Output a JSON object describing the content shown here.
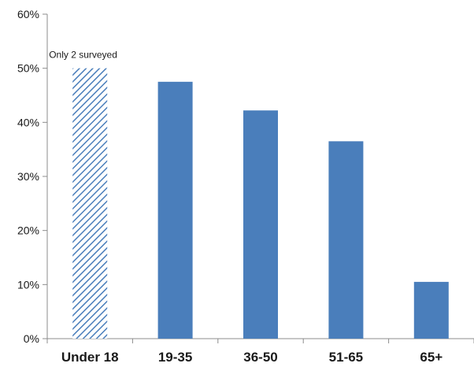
{
  "chart_data": {
    "type": "bar",
    "title": "",
    "xlabel": "",
    "ylabel": "",
    "categories": [
      "Under 18",
      "19-35",
      "36-50",
      "51-65",
      "65+"
    ],
    "values": [
      50,
      47.5,
      42.2,
      36.5,
      10.5
    ],
    "bar_styles": [
      "hatched",
      "solid",
      "solid",
      "solid",
      "solid"
    ],
    "ylim": [
      0,
      60
    ],
    "yticks": [
      0,
      10,
      20,
      30,
      40,
      50,
      60
    ],
    "ytick_labels": [
      "0%",
      "10%",
      "20%",
      "30%",
      "40%",
      "50%",
      "60%"
    ],
    "grid": false,
    "legend": "none",
    "annotations": [
      {
        "text": "Only 2 surveyed",
        "category": "Under 18"
      }
    ],
    "colors": {
      "bar": "#4a7ebb",
      "hatch": "#4a7ebb",
      "axis": "#8c8c8c"
    }
  }
}
